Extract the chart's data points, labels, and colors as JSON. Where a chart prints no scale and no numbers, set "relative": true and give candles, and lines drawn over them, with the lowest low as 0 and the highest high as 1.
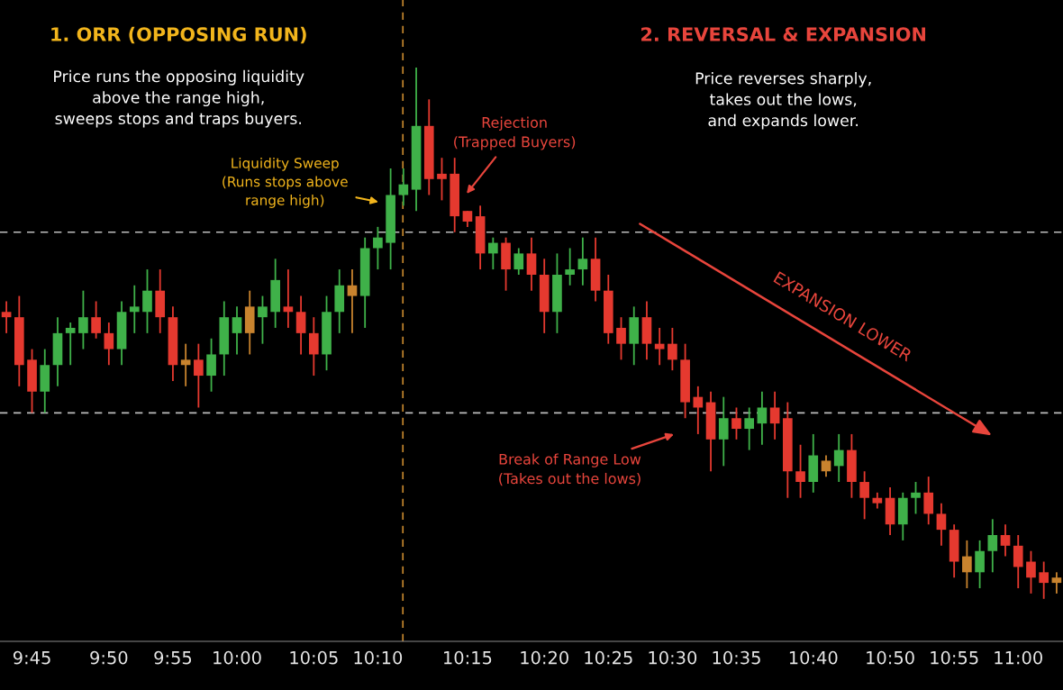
{
  "chart_data": {
    "type": "candlestick",
    "relative": true,
    "categories": [
      null,
      null,
      "9:45",
      null,
      null,
      null,
      null,
      null,
      "9:50",
      null,
      null,
      null,
      null,
      "9:55",
      null,
      null,
      null,
      null,
      "10:00",
      null,
      null,
      null,
      null,
      null,
      "10:05",
      null,
      null,
      null,
      null,
      "10:10",
      null,
      null,
      null,
      null,
      null,
      null,
      "10:15",
      null,
      null,
      null,
      null,
      null,
      "10:20",
      null,
      null,
      null,
      null,
      "10:25",
      null,
      null,
      null,
      null,
      "10:30",
      null,
      null,
      null,
      null,
      "10:35",
      null,
      null,
      null,
      null,
      null,
      "10:40",
      null,
      null,
      null,
      null,
      null,
      "10:50",
      null,
      null,
      null,
      null,
      "10:55",
      null,
      null,
      null,
      null,
      "11:00",
      null,
      null,
      null
    ],
    "ohlc": [
      [
        0.54,
        0.56,
        0.5,
        0.53
      ],
      [
        0.53,
        0.57,
        0.4,
        0.44
      ],
      [
        0.45,
        0.47,
        0.35,
        0.39
      ],
      [
        0.39,
        0.47,
        0.35,
        0.44
      ],
      [
        0.44,
        0.53,
        0.4,
        0.5
      ],
      [
        0.5,
        0.52,
        0.44,
        0.51
      ],
      [
        0.5,
        0.58,
        0.47,
        0.53
      ],
      [
        0.53,
        0.56,
        0.49,
        0.5
      ],
      [
        0.5,
        0.52,
        0.44,
        0.47
      ],
      [
        0.47,
        0.56,
        0.44,
        0.54
      ],
      [
        0.54,
        0.59,
        0.5,
        0.55
      ],
      [
        0.54,
        0.62,
        0.5,
        0.58
      ],
      [
        0.58,
        0.62,
        0.5,
        0.53
      ],
      [
        0.53,
        0.55,
        0.41,
        0.44
      ],
      [
        0.45,
        0.48,
        0.4,
        0.44
      ],
      [
        0.45,
        0.48,
        0.36,
        0.42
      ],
      [
        0.42,
        0.49,
        0.39,
        0.46
      ],
      [
        0.46,
        0.56,
        0.42,
        0.53
      ],
      [
        0.5,
        0.55,
        0.46,
        0.53
      ],
      [
        0.55,
        0.58,
        0.46,
        0.5
      ],
      [
        0.53,
        0.57,
        0.48,
        0.55
      ],
      [
        0.54,
        0.64,
        0.51,
        0.6
      ],
      [
        0.55,
        0.62,
        0.51,
        0.54
      ],
      [
        0.54,
        0.57,
        0.46,
        0.5
      ],
      [
        0.5,
        0.53,
        0.42,
        0.46
      ],
      [
        0.46,
        0.57,
        0.43,
        0.54
      ],
      [
        0.54,
        0.62,
        0.5,
        0.59
      ],
      [
        0.57,
        0.62,
        0.5,
        0.59
      ],
      [
        0.57,
        0.68,
        0.51,
        0.66
      ],
      [
        0.66,
        0.7,
        0.62,
        0.68
      ],
      [
        0.67,
        0.81,
        0.62,
        0.76
      ],
      [
        0.76,
        0.81,
        0.74,
        0.78
      ],
      [
        0.77,
        1.0,
        0.73,
        0.89
      ],
      [
        0.89,
        0.94,
        0.76,
        0.79
      ],
      [
        0.8,
        0.83,
        0.75,
        0.79
      ],
      [
        0.8,
        0.83,
        0.69,
        0.72
      ],
      [
        0.73,
        0.73,
        0.7,
        0.71
      ],
      [
        0.72,
        0.74,
        0.62,
        0.65
      ],
      [
        0.65,
        0.68,
        0.62,
        0.67
      ],
      [
        0.67,
        0.68,
        0.58,
        0.62
      ],
      [
        0.62,
        0.66,
        0.61,
        0.65
      ],
      [
        0.65,
        0.68,
        0.58,
        0.61
      ],
      [
        0.61,
        0.64,
        0.5,
        0.54
      ],
      [
        0.54,
        0.65,
        0.5,
        0.61
      ],
      [
        0.61,
        0.66,
        0.59,
        0.62
      ],
      [
        0.62,
        0.68,
        0.59,
        0.64
      ],
      [
        0.64,
        0.68,
        0.56,
        0.58
      ],
      [
        0.58,
        0.61,
        0.48,
        0.5
      ],
      [
        0.51,
        0.53,
        0.45,
        0.48
      ],
      [
        0.48,
        0.55,
        0.44,
        0.53
      ],
      [
        0.53,
        0.56,
        0.45,
        0.48
      ],
      [
        0.48,
        0.51,
        0.44,
        0.47
      ],
      [
        0.48,
        0.51,
        0.43,
        0.45
      ],
      [
        0.45,
        0.48,
        0.34,
        0.37
      ],
      [
        0.38,
        0.4,
        0.31,
        0.36
      ],
      [
        0.37,
        0.39,
        0.24,
        0.3
      ],
      [
        0.3,
        0.38,
        0.25,
        0.34
      ],
      [
        0.34,
        0.36,
        0.3,
        0.32
      ],
      [
        0.32,
        0.36,
        0.28,
        0.34
      ],
      [
        0.33,
        0.39,
        0.29,
        0.36
      ],
      [
        0.36,
        0.39,
        0.3,
        0.33
      ],
      [
        0.34,
        0.37,
        0.19,
        0.24
      ],
      [
        0.24,
        0.29,
        0.19,
        0.22
      ],
      [
        0.22,
        0.31,
        0.2,
        0.27
      ],
      [
        0.24,
        0.27,
        0.23,
        0.26
      ],
      [
        0.25,
        0.31,
        0.22,
        0.28
      ],
      [
        0.28,
        0.31,
        0.19,
        0.22
      ],
      [
        0.22,
        0.24,
        0.15,
        0.19
      ],
      [
        0.19,
        0.2,
        0.17,
        0.18
      ],
      [
        0.19,
        0.21,
        0.12,
        0.14
      ],
      [
        0.14,
        0.2,
        0.11,
        0.19
      ],
      [
        0.19,
        0.22,
        0.16,
        0.2
      ],
      [
        0.2,
        0.23,
        0.14,
        0.16
      ],
      [
        0.16,
        0.18,
        0.1,
        0.13
      ],
      [
        0.13,
        0.14,
        0.04,
        0.07
      ],
      [
        0.08,
        0.11,
        0.02,
        0.05
      ],
      [
        0.05,
        0.11,
        0.02,
        0.09
      ],
      [
        0.09,
        0.15,
        0.05,
        0.12
      ],
      [
        0.12,
        0.14,
        0.08,
        0.1
      ],
      [
        0.1,
        0.12,
        0.02,
        0.06
      ],
      [
        0.07,
        0.09,
        0.01,
        0.04
      ],
      [
        0.05,
        0.07,
        0.0,
        0.03
      ],
      [
        0.04,
        0.05,
        0.01,
        0.03
      ]
    ],
    "colors": [
      "#e5392f",
      "#e5392f",
      "#e5392f",
      "#3fb149",
      "#3fb149",
      "#3fb149",
      "#3fb149",
      "#e5392f",
      "#e5392f",
      "#3fb149",
      "#3fb149",
      "#3fb149",
      "#e5392f",
      "#e5392f",
      "#c8832e",
      "#e5392f",
      "#3fb149",
      "#3fb149",
      "#3fb149",
      "#c8832e",
      "#3fb149",
      "#3fb149",
      "#e5392f",
      "#e5392f",
      "#e5392f",
      "#3fb149",
      "#3fb149",
      "#c8832e",
      "#3fb149",
      "#3fb149",
      "#3fb149",
      "#3fb149",
      "#3fb149",
      "#e5392f",
      "#e5392f",
      "#e5392f",
      "#e5392f",
      "#e5392f",
      "#3fb149",
      "#e5392f",
      "#3fb149",
      "#e5392f",
      "#e5392f",
      "#3fb149",
      "#3fb149",
      "#3fb149",
      "#e5392f",
      "#e5392f",
      "#e5392f",
      "#3fb149",
      "#e5392f",
      "#e5392f",
      "#e5392f",
      "#e5392f",
      "#e5392f",
      "#e5392f",
      "#3fb149",
      "#e5392f",
      "#3fb149",
      "#3fb149",
      "#e5392f",
      "#e5392f",
      "#e5392f",
      "#3fb149",
      "#c8832e",
      "#3fb149",
      "#e5392f",
      "#e5392f",
      "#e5392f",
      "#e5392f",
      "#3fb149",
      "#3fb149",
      "#e5392f",
      "#e5392f",
      "#e5392f",
      "#c8832e",
      "#3fb149",
      "#3fb149",
      "#e5392f",
      "#e5392f",
      "#e5392f",
      "#e5392f",
      "#c8832e"
    ],
    "ref_lines": [
      {
        "axis": "y",
        "value": 0.69,
        "color": "#bdbdbd",
        "line_style": "dashed"
      },
      {
        "axis": "y",
        "value": 0.35,
        "color": "#bdbdbd",
        "line_style": "dashed"
      }
    ],
    "annotations": [
      "1. ORR (OPPOSING RUN)",
      "Price runs the opposing liquidity\nabove the range high,\nsweeps stops and traps buyers.",
      "2. REVERSAL & EXPANSION",
      "Price reverses sharply,\ntakes out the lows,\nand expands lower.",
      "Liquidity Sweep\n(Runs stops above\nrange high)",
      "Rejection\n(Trapped Buyers)",
      "Break of Range Low\n(Takes out the lows)",
      "EXPANSION LOWER"
    ],
    "tick_labels": "x",
    "grid": false,
    "legend": false
  }
}
